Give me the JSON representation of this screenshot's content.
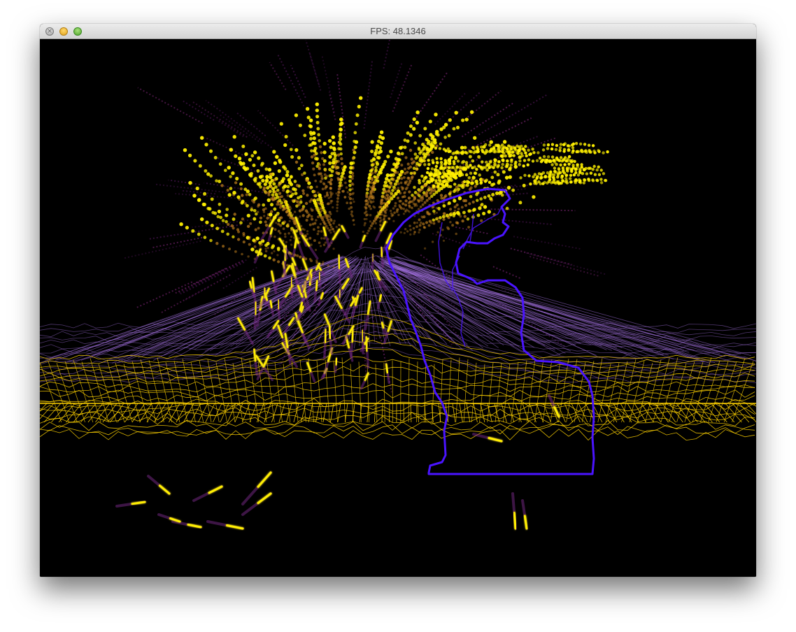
{
  "window": {
    "title": "FPS: 48.1346"
  },
  "colors": {
    "background": "#000000",
    "grid": "#ffd200",
    "grid_back": "#9b6bd6",
    "particles_hot": "#fff000",
    "particles_cool": "#7a2a8a",
    "silhouette": "#4a14ff"
  },
  "icons": {
    "close": "close-icon",
    "minimize": "minimize-icon",
    "zoom": "zoom-icon"
  }
}
